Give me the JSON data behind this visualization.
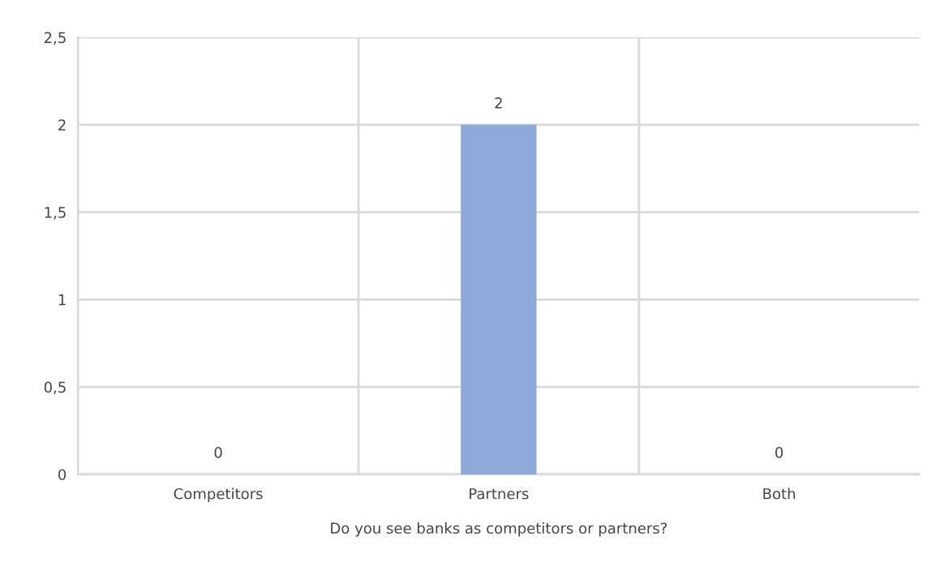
{
  "chart_data": {
    "type": "bar",
    "categories": [
      "Competitors",
      "Partners",
      "Both"
    ],
    "values": [
      0,
      2,
      0
    ],
    "color": "#8eaadb",
    "xlabel": "Do you see banks as competitors or partners?",
    "ylim": [
      0,
      2.5
    ],
    "yticks": [
      0,
      {
        "value": 0.5,
        "label": "0,5"
      },
      1,
      {
        "value": 1.5,
        "label": "1,5"
      },
      2,
      {
        "value": 2.5,
        "label": "2,5"
      }
    ],
    "grid": true,
    "data_labels": true
  }
}
